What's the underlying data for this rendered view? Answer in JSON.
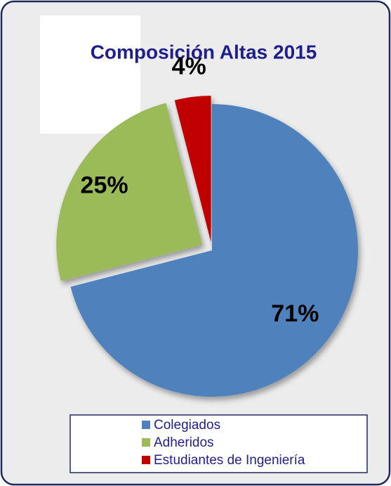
{
  "chart_data": {
    "type": "pie",
    "title": "Composición Altas 2015",
    "categories": [
      "Colegiados",
      "Adheridos",
      "Estudiantes de Ingeniería"
    ],
    "values": [
      71,
      25,
      4
    ],
    "value_labels": [
      "71%",
      "25%",
      "4%"
    ],
    "colors": [
      "#4f81bd",
      "#9bbb59",
      "#c00000"
    ],
    "legend": "bottom"
  }
}
